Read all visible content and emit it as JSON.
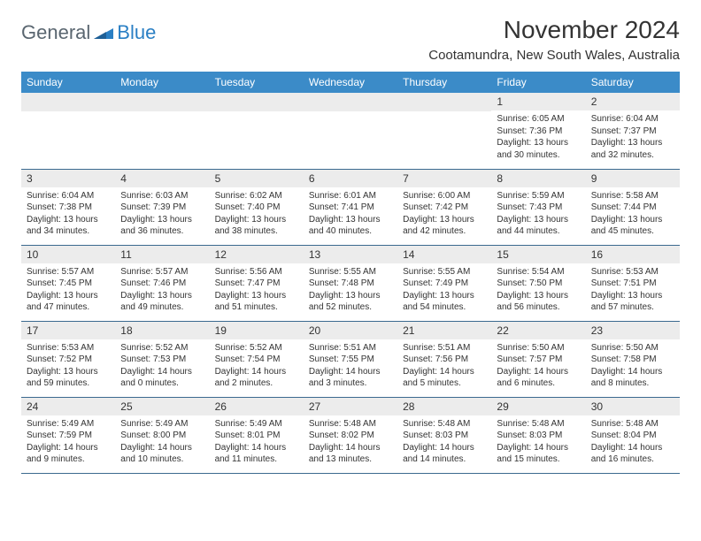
{
  "logo": {
    "general": "General",
    "blue": "Blue"
  },
  "title": "November 2024",
  "location": "Cootamundra, New South Wales, Australia",
  "colors": {
    "header_bg": "#3b8bc8",
    "header_text": "#ffffff",
    "daynum_bg": "#ececec",
    "row_border": "#3b6a8f",
    "body_text": "#333333",
    "logo_gray": "#5a6670",
    "logo_blue": "#2a7fc4"
  },
  "weekdays": [
    "Sunday",
    "Monday",
    "Tuesday",
    "Wednesday",
    "Thursday",
    "Friday",
    "Saturday"
  ],
  "weeks": [
    [
      null,
      null,
      null,
      null,
      null,
      {
        "n": "1",
        "sr": "Sunrise: 6:05 AM",
        "ss": "Sunset: 7:36 PM",
        "d1": "Daylight: 13 hours",
        "d2": "and 30 minutes."
      },
      {
        "n": "2",
        "sr": "Sunrise: 6:04 AM",
        "ss": "Sunset: 7:37 PM",
        "d1": "Daylight: 13 hours",
        "d2": "and 32 minutes."
      }
    ],
    [
      {
        "n": "3",
        "sr": "Sunrise: 6:04 AM",
        "ss": "Sunset: 7:38 PM",
        "d1": "Daylight: 13 hours",
        "d2": "and 34 minutes."
      },
      {
        "n": "4",
        "sr": "Sunrise: 6:03 AM",
        "ss": "Sunset: 7:39 PM",
        "d1": "Daylight: 13 hours",
        "d2": "and 36 minutes."
      },
      {
        "n": "5",
        "sr": "Sunrise: 6:02 AM",
        "ss": "Sunset: 7:40 PM",
        "d1": "Daylight: 13 hours",
        "d2": "and 38 minutes."
      },
      {
        "n": "6",
        "sr": "Sunrise: 6:01 AM",
        "ss": "Sunset: 7:41 PM",
        "d1": "Daylight: 13 hours",
        "d2": "and 40 minutes."
      },
      {
        "n": "7",
        "sr": "Sunrise: 6:00 AM",
        "ss": "Sunset: 7:42 PM",
        "d1": "Daylight: 13 hours",
        "d2": "and 42 minutes."
      },
      {
        "n": "8",
        "sr": "Sunrise: 5:59 AM",
        "ss": "Sunset: 7:43 PM",
        "d1": "Daylight: 13 hours",
        "d2": "and 44 minutes."
      },
      {
        "n": "9",
        "sr": "Sunrise: 5:58 AM",
        "ss": "Sunset: 7:44 PM",
        "d1": "Daylight: 13 hours",
        "d2": "and 45 minutes."
      }
    ],
    [
      {
        "n": "10",
        "sr": "Sunrise: 5:57 AM",
        "ss": "Sunset: 7:45 PM",
        "d1": "Daylight: 13 hours",
        "d2": "and 47 minutes."
      },
      {
        "n": "11",
        "sr": "Sunrise: 5:57 AM",
        "ss": "Sunset: 7:46 PM",
        "d1": "Daylight: 13 hours",
        "d2": "and 49 minutes."
      },
      {
        "n": "12",
        "sr": "Sunrise: 5:56 AM",
        "ss": "Sunset: 7:47 PM",
        "d1": "Daylight: 13 hours",
        "d2": "and 51 minutes."
      },
      {
        "n": "13",
        "sr": "Sunrise: 5:55 AM",
        "ss": "Sunset: 7:48 PM",
        "d1": "Daylight: 13 hours",
        "d2": "and 52 minutes."
      },
      {
        "n": "14",
        "sr": "Sunrise: 5:55 AM",
        "ss": "Sunset: 7:49 PM",
        "d1": "Daylight: 13 hours",
        "d2": "and 54 minutes."
      },
      {
        "n": "15",
        "sr": "Sunrise: 5:54 AM",
        "ss": "Sunset: 7:50 PM",
        "d1": "Daylight: 13 hours",
        "d2": "and 56 minutes."
      },
      {
        "n": "16",
        "sr": "Sunrise: 5:53 AM",
        "ss": "Sunset: 7:51 PM",
        "d1": "Daylight: 13 hours",
        "d2": "and 57 minutes."
      }
    ],
    [
      {
        "n": "17",
        "sr": "Sunrise: 5:53 AM",
        "ss": "Sunset: 7:52 PM",
        "d1": "Daylight: 13 hours",
        "d2": "and 59 minutes."
      },
      {
        "n": "18",
        "sr": "Sunrise: 5:52 AM",
        "ss": "Sunset: 7:53 PM",
        "d1": "Daylight: 14 hours",
        "d2": "and 0 minutes."
      },
      {
        "n": "19",
        "sr": "Sunrise: 5:52 AM",
        "ss": "Sunset: 7:54 PM",
        "d1": "Daylight: 14 hours",
        "d2": "and 2 minutes."
      },
      {
        "n": "20",
        "sr": "Sunrise: 5:51 AM",
        "ss": "Sunset: 7:55 PM",
        "d1": "Daylight: 14 hours",
        "d2": "and 3 minutes."
      },
      {
        "n": "21",
        "sr": "Sunrise: 5:51 AM",
        "ss": "Sunset: 7:56 PM",
        "d1": "Daylight: 14 hours",
        "d2": "and 5 minutes."
      },
      {
        "n": "22",
        "sr": "Sunrise: 5:50 AM",
        "ss": "Sunset: 7:57 PM",
        "d1": "Daylight: 14 hours",
        "d2": "and 6 minutes."
      },
      {
        "n": "23",
        "sr": "Sunrise: 5:50 AM",
        "ss": "Sunset: 7:58 PM",
        "d1": "Daylight: 14 hours",
        "d2": "and 8 minutes."
      }
    ],
    [
      {
        "n": "24",
        "sr": "Sunrise: 5:49 AM",
        "ss": "Sunset: 7:59 PM",
        "d1": "Daylight: 14 hours",
        "d2": "and 9 minutes."
      },
      {
        "n": "25",
        "sr": "Sunrise: 5:49 AM",
        "ss": "Sunset: 8:00 PM",
        "d1": "Daylight: 14 hours",
        "d2": "and 10 minutes."
      },
      {
        "n": "26",
        "sr": "Sunrise: 5:49 AM",
        "ss": "Sunset: 8:01 PM",
        "d1": "Daylight: 14 hours",
        "d2": "and 11 minutes."
      },
      {
        "n": "27",
        "sr": "Sunrise: 5:48 AM",
        "ss": "Sunset: 8:02 PM",
        "d1": "Daylight: 14 hours",
        "d2": "and 13 minutes."
      },
      {
        "n": "28",
        "sr": "Sunrise: 5:48 AM",
        "ss": "Sunset: 8:03 PM",
        "d1": "Daylight: 14 hours",
        "d2": "and 14 minutes."
      },
      {
        "n": "29",
        "sr": "Sunrise: 5:48 AM",
        "ss": "Sunset: 8:03 PM",
        "d1": "Daylight: 14 hours",
        "d2": "and 15 minutes."
      },
      {
        "n": "30",
        "sr": "Sunrise: 5:48 AM",
        "ss": "Sunset: 8:04 PM",
        "d1": "Daylight: 14 hours",
        "d2": "and 16 minutes."
      }
    ]
  ]
}
